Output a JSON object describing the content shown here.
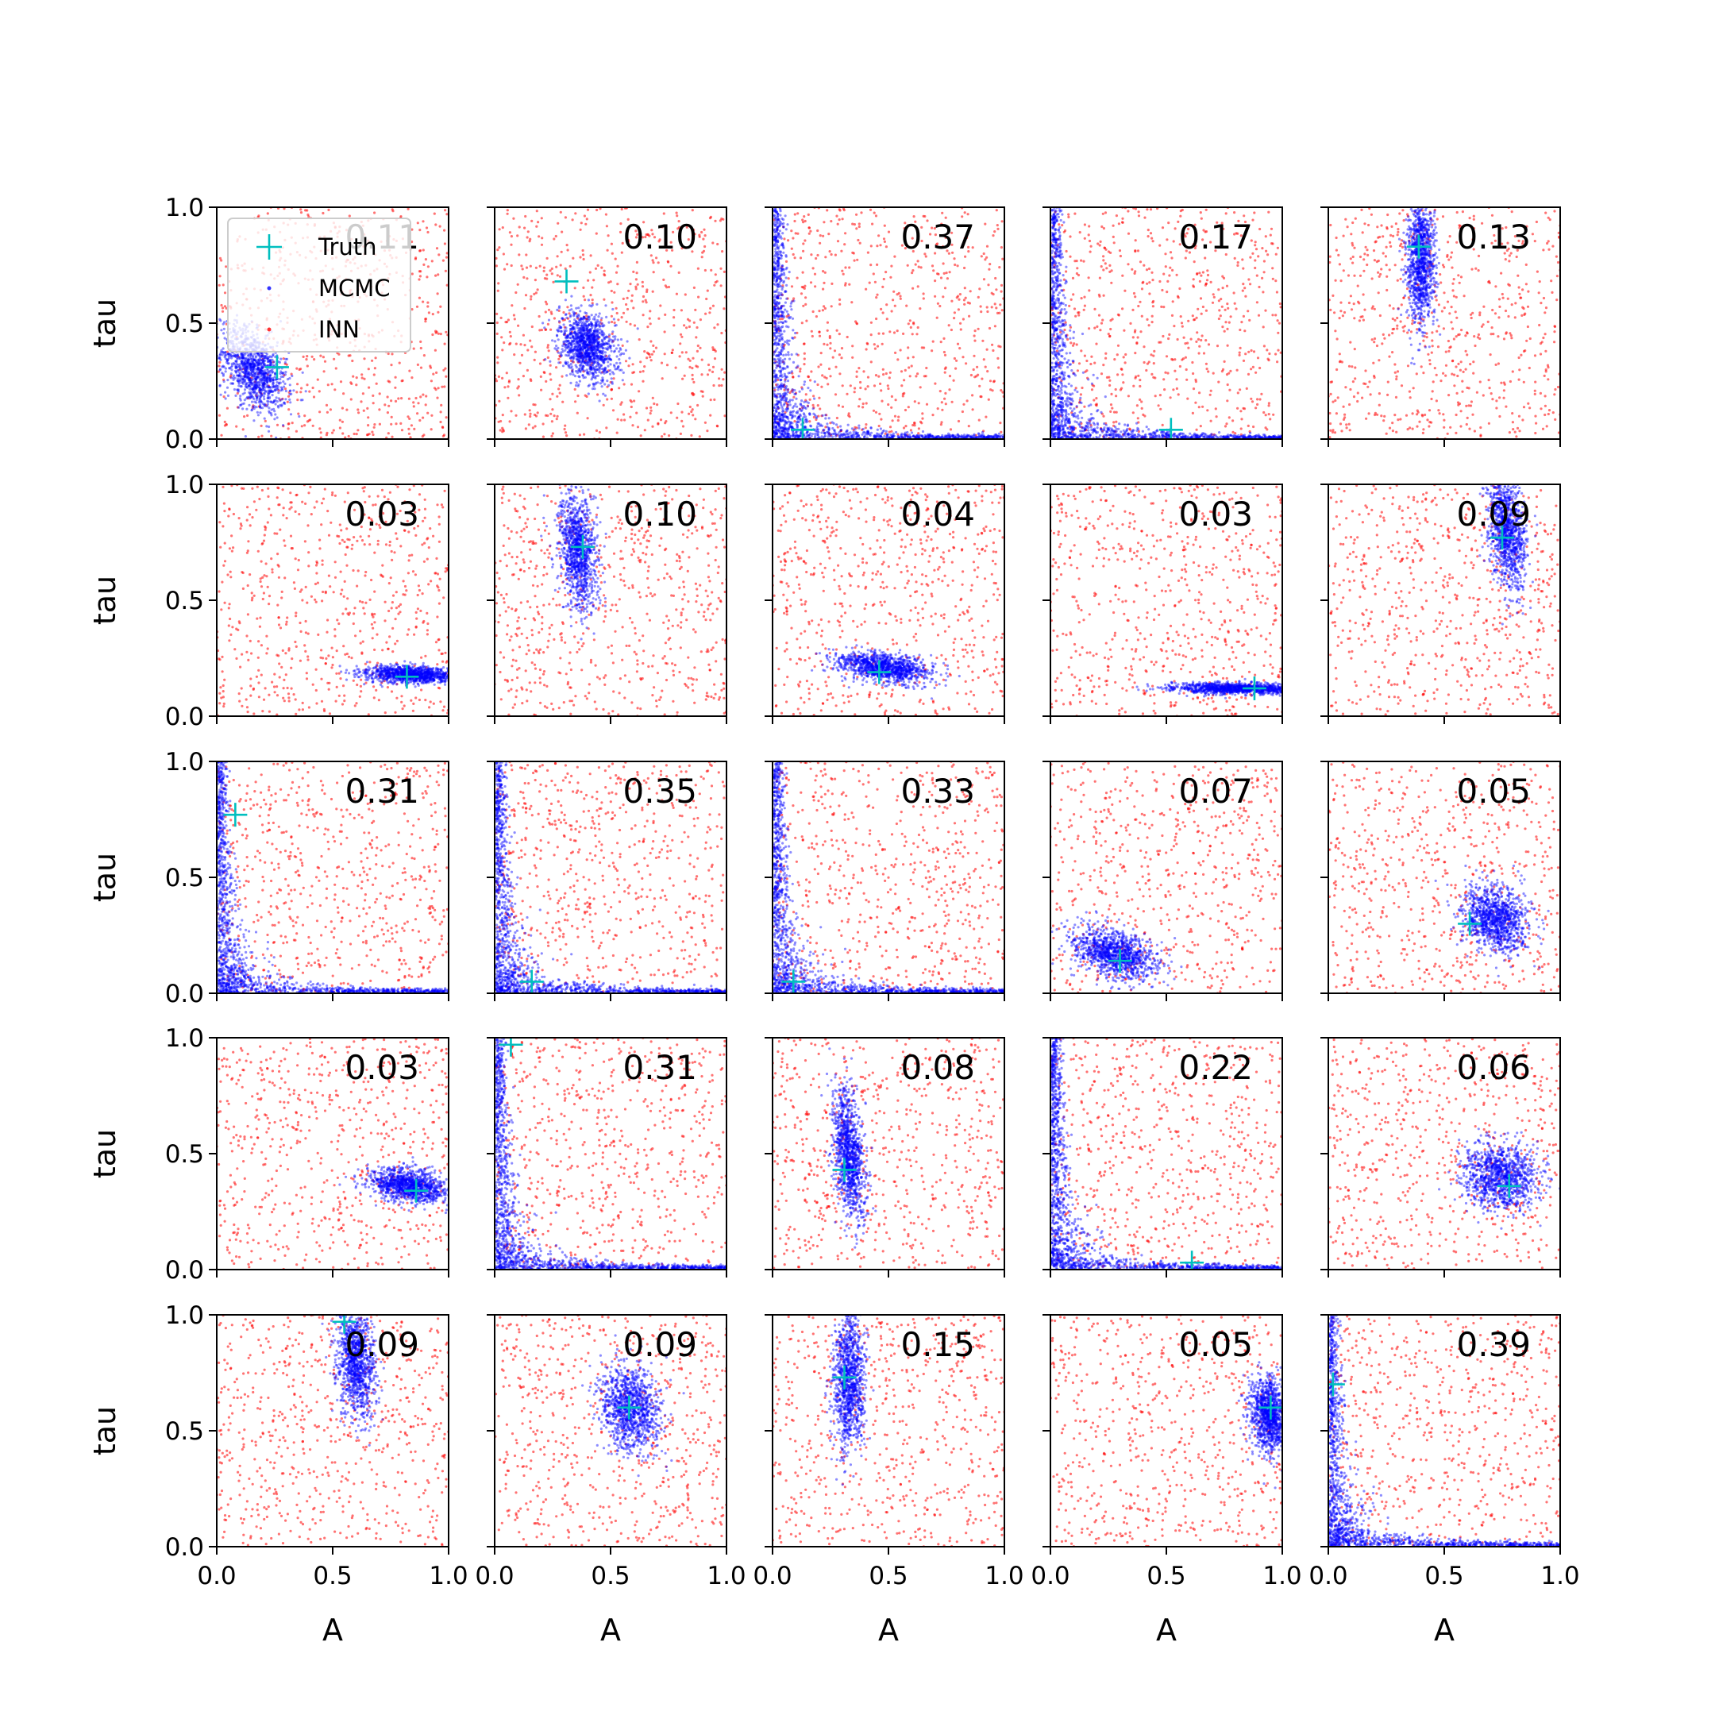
{
  "chart_data": {
    "type": "scatter",
    "layout": {
      "rows": 5,
      "cols": 5
    },
    "xlabel": "A",
    "ylabel": "tau",
    "xlim": [
      0,
      1
    ],
    "ylim": [
      0,
      1
    ],
    "xticks": [
      "0.0",
      "0.5",
      "1.0"
    ],
    "yticks": [
      "0.0",
      "0.5",
      "1.0"
    ],
    "grid": false,
    "legend": {
      "placement": "top-left of first panel",
      "entries": [
        {
          "label": "Truth",
          "marker": "plus",
          "color": "#00bfbf"
        },
        {
          "label": "MCMC",
          "marker": "dot",
          "color": "#0000ff"
        },
        {
          "label": "INN",
          "marker": "dot",
          "color": "#ff0000"
        }
      ]
    },
    "colors": {
      "truth": "#00bfbf",
      "mcmc": "#0000ff",
      "inn": "#ff0000"
    },
    "panels": [
      {
        "label": "0.11",
        "truth": [
          0.26,
          0.31
        ],
        "mcmc": {
          "shape": "blob",
          "center": [
            0.16,
            0.3
          ],
          "spread": [
            0.07,
            0.08
          ],
          "tilt": -0.5
        }
      },
      {
        "label": "0.10",
        "truth": [
          0.31,
          0.68
        ],
        "mcmc": {
          "shape": "blob",
          "center": [
            0.4,
            0.4
          ],
          "spread": [
            0.06,
            0.07
          ],
          "tilt": -0.3
        }
      },
      {
        "label": "0.37",
        "truth": [
          0.13,
          0.04
        ],
        "mcmc": {
          "shape": "curve"
        }
      },
      {
        "label": "0.17",
        "truth": [
          0.52,
          0.04
        ],
        "mcmc": {
          "shape": "curve"
        }
      },
      {
        "label": "0.13",
        "truth": [
          0.39,
          0.83
        ],
        "mcmc": {
          "shape": "blob",
          "center": [
            0.4,
            0.78
          ],
          "spread": [
            0.03,
            0.14
          ],
          "tilt": 0.0
        }
      },
      {
        "label": "0.03",
        "truth": [
          0.82,
          0.17
        ],
        "mcmc": {
          "shape": "blob",
          "center": [
            0.84,
            0.18
          ],
          "spread": [
            0.1,
            0.018
          ],
          "tilt": -0.2
        }
      },
      {
        "label": "0.10",
        "truth": [
          0.38,
          0.73
        ],
        "mcmc": {
          "shape": "blob",
          "center": [
            0.36,
            0.72
          ],
          "spread": [
            0.04,
            0.12
          ],
          "tilt": -0.3
        }
      },
      {
        "label": "0.04",
        "truth": [
          0.46,
          0.19
        ],
        "mcmc": {
          "shape": "blob",
          "center": [
            0.48,
            0.21
          ],
          "spread": [
            0.1,
            0.03
          ],
          "tilt": -0.4
        }
      },
      {
        "label": "0.03",
        "truth": [
          0.88,
          0.12
        ],
        "mcmc": {
          "shape": "blob",
          "center": [
            0.8,
            0.12
          ],
          "spread": [
            0.14,
            0.012
          ],
          "tilt": -0.1
        }
      },
      {
        "label": "0.09",
        "truth": [
          0.75,
          0.77
        ],
        "mcmc": {
          "shape": "blob",
          "center": [
            0.77,
            0.8
          ],
          "spread": [
            0.04,
            0.12
          ],
          "tilt": -0.4
        }
      },
      {
        "label": "0.31",
        "truth": [
          0.08,
          0.77
        ],
        "mcmc": {
          "shape": "curve"
        }
      },
      {
        "label": "0.35",
        "truth": [
          0.16,
          0.05
        ],
        "mcmc": {
          "shape": "curve"
        }
      },
      {
        "label": "0.33",
        "truth": [
          0.09,
          0.05
        ],
        "mcmc": {
          "shape": "curve"
        }
      },
      {
        "label": "0.07",
        "truth": [
          0.3,
          0.14
        ],
        "mcmc": {
          "shape": "blob",
          "center": [
            0.28,
            0.17
          ],
          "spread": [
            0.09,
            0.05
          ],
          "tilt": -0.4
        }
      },
      {
        "label": "0.05",
        "truth": [
          0.61,
          0.3
        ],
        "mcmc": {
          "shape": "blob",
          "center": [
            0.72,
            0.32
          ],
          "spread": [
            0.07,
            0.07
          ],
          "tilt": -0.2
        }
      },
      {
        "label": "0.03",
        "truth": [
          0.86,
          0.34
        ],
        "mcmc": {
          "shape": "blob",
          "center": [
            0.83,
            0.36
          ],
          "spread": [
            0.08,
            0.035
          ],
          "tilt": -0.3
        }
      },
      {
        "label": "0.31",
        "truth": [
          0.07,
          0.97
        ],
        "mcmc": {
          "shape": "curve"
        }
      },
      {
        "label": "0.08",
        "truth": [
          0.31,
          0.43
        ],
        "mcmc": {
          "shape": "blob",
          "center": [
            0.33,
            0.5
          ],
          "spread": [
            0.035,
            0.13
          ],
          "tilt": -0.4
        }
      },
      {
        "label": "0.22",
        "truth": [
          0.61,
          0.03
        ],
        "mcmc": {
          "shape": "curve"
        }
      },
      {
        "label": "0.06",
        "truth": [
          0.78,
          0.36
        ],
        "mcmc": {
          "shape": "blob",
          "center": [
            0.75,
            0.4
          ],
          "spread": [
            0.08,
            0.07
          ],
          "tilt": -0.1
        }
      },
      {
        "label": "0.09",
        "truth": [
          0.55,
          0.97
        ],
        "mcmc": {
          "shape": "blob",
          "center": [
            0.6,
            0.8
          ],
          "spread": [
            0.04,
            0.12
          ],
          "tilt": -0.2
        }
      },
      {
        "label": "0.09",
        "truth": [
          0.58,
          0.6
        ],
        "mcmc": {
          "shape": "blob",
          "center": [
            0.58,
            0.6
          ],
          "spread": [
            0.06,
            0.09
          ],
          "tilt": -0.2
        }
      },
      {
        "label": "0.15",
        "truth": [
          0.31,
          0.73
        ],
        "mcmc": {
          "shape": "blob",
          "center": [
            0.33,
            0.72
          ],
          "spread": [
            0.035,
            0.15
          ],
          "tilt": 0.0
        }
      },
      {
        "label": "0.05",
        "truth": [
          0.95,
          0.6
        ],
        "mcmc": {
          "shape": "blob",
          "center": [
            0.94,
            0.57
          ],
          "spread": [
            0.04,
            0.08
          ],
          "tilt": -0.2
        }
      },
      {
        "label": "0.39",
        "truth": [
          0.02,
          0.7
        ],
        "mcmc": {
          "shape": "curve"
        }
      }
    ]
  }
}
